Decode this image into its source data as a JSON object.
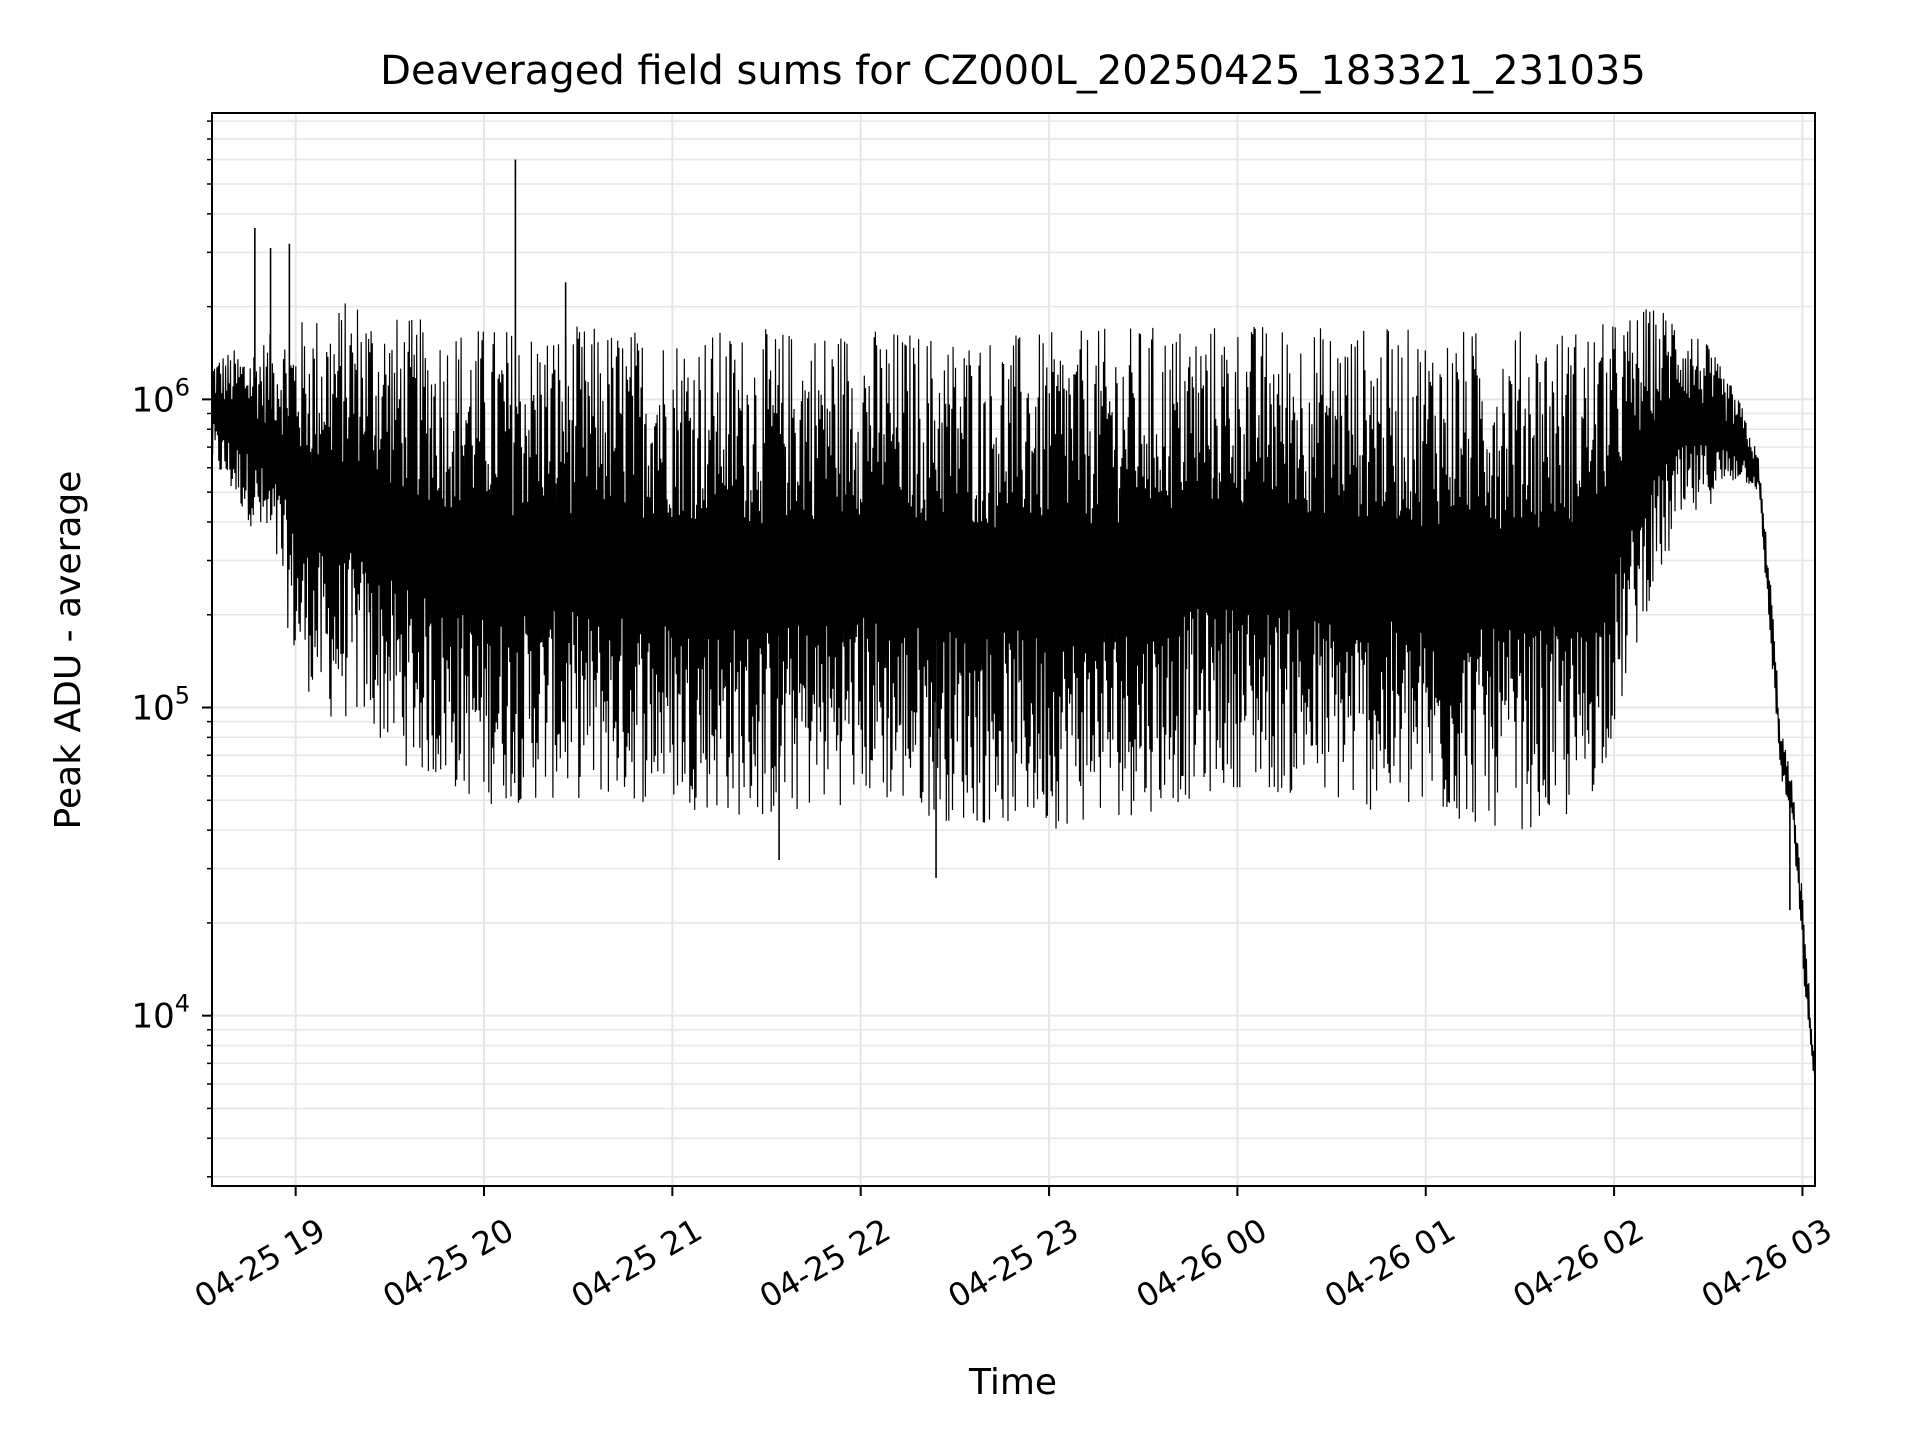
{
  "chart_data": {
    "type": "line",
    "title": "Deaveraged field sums for CZ000L_20250425_183321_231035",
    "xlabel": "Time",
    "ylabel": "Peak ADU - average",
    "x_type": "datetime",
    "xlim": [
      "2025-04-25T18:33:21",
      "2025-04-26T03:04:00"
    ],
    "ylim": [
      2800,
      8500000
    ],
    "yscale": "log",
    "grid": true,
    "x_ticks": [
      {
        "value": "2025-04-25T19:00:00",
        "label": "04-25 19"
      },
      {
        "value": "2025-04-25T20:00:00",
        "label": "04-25 20"
      },
      {
        "value": "2025-04-25T21:00:00",
        "label": "04-25 21"
      },
      {
        "value": "2025-04-25T22:00:00",
        "label": "04-25 22"
      },
      {
        "value": "2025-04-25T23:00:00",
        "label": "04-25 23"
      },
      {
        "value": "2025-04-26T00:00:00",
        "label": "04-26 00"
      },
      {
        "value": "2025-04-26T01:00:00",
        "label": "04-26 01"
      },
      {
        "value": "2025-04-26T02:00:00",
        "label": "04-26 02"
      },
      {
        "value": "2025-04-26T03:00:00",
        "label": "04-26 03"
      }
    ],
    "y_ticks": [
      {
        "value": 10000,
        "base": "10",
        "exp": "4"
      },
      {
        "value": 100000,
        "base": "10",
        "exp": "5"
      },
      {
        "value": 1000000,
        "base": "10",
        "exp": "6"
      }
    ],
    "series": [
      {
        "color": "#000000",
        "envelope": [
          {
            "x": "2025-04-25T18:33:21",
            "low": 600000,
            "high": 1400000
          },
          {
            "x": "2025-04-25T18:45:00",
            "low": 400000,
            "high": 1500000
          },
          {
            "x": "2025-04-25T18:55:00",
            "low": 250000,
            "high": 1700000
          },
          {
            "x": "2025-04-25T19:00:00",
            "low": 130000,
            "high": 1800000
          },
          {
            "x": "2025-04-25T19:10:00",
            "low": 90000,
            "high": 2000000
          },
          {
            "x": "2025-04-25T19:20:00",
            "low": 90000,
            "high": 2200000
          },
          {
            "x": "2025-04-25T19:30:00",
            "low": 70000,
            "high": 1900000
          },
          {
            "x": "2025-04-25T19:45:00",
            "low": 55000,
            "high": 1800000
          },
          {
            "x": "2025-04-25T20:00:00",
            "low": 48000,
            "high": 1750000
          },
          {
            "x": "2025-04-25T20:30:00",
            "low": 50000,
            "high": 1750000
          },
          {
            "x": "2025-04-25T21:00:00",
            "low": 48000,
            "high": 1700000
          },
          {
            "x": "2025-04-25T21:30:00",
            "low": 42000,
            "high": 1700000
          },
          {
            "x": "2025-04-25T22:00:00",
            "low": 50000,
            "high": 1750000
          },
          {
            "x": "2025-04-25T22:30:00",
            "low": 42000,
            "high": 1650000
          },
          {
            "x": "2025-04-25T23:00:00",
            "low": 40000,
            "high": 1650000
          },
          {
            "x": "2025-04-25T23:30:00",
            "low": 45000,
            "high": 1750000
          },
          {
            "x": "2025-04-26T00:00:00",
            "low": 55000,
            "high": 1800000
          },
          {
            "x": "2025-04-26T00:30:00",
            "low": 48000,
            "high": 1750000
          },
          {
            "x": "2025-04-26T01:00:00",
            "low": 42000,
            "high": 1700000
          },
          {
            "x": "2025-04-26T01:30:00",
            "low": 40000,
            "high": 1700000
          },
          {
            "x": "2025-04-26T01:50:00",
            "low": 42000,
            "high": 1750000
          },
          {
            "x": "2025-04-26T02:00:00",
            "low": 80000,
            "high": 1800000
          },
          {
            "x": "2025-04-26T02:10:00",
            "low": 200000,
            "high": 2000000
          },
          {
            "x": "2025-04-26T02:20:00",
            "low": 350000,
            "high": 2000000
          },
          {
            "x": "2025-04-26T02:30:00",
            "low": 450000,
            "high": 1500000
          },
          {
            "x": "2025-04-26T02:40:00",
            "low": 550000,
            "high": 1000000
          },
          {
            "x": "2025-04-26T02:46:00",
            "low": 500000,
            "high": 650000
          },
          {
            "x": "2025-04-26T02:50:00",
            "low": 150000,
            "high": 250000
          },
          {
            "x": "2025-04-26T02:53:00",
            "low": 60000,
            "high": 90000
          },
          {
            "x": "2025-04-26T02:57:00",
            "low": 40000,
            "high": 55000
          },
          {
            "x": "2025-04-26T03:00:00",
            "low": 15000,
            "high": 25000
          },
          {
            "x": "2025-04-26T03:02:00",
            "low": 8000,
            "high": 13000
          },
          {
            "x": "2025-04-26T03:04:00",
            "low": 6000,
            "high": 7000
          }
        ],
        "spikes": [
          {
            "x": "2025-04-25T18:47:00",
            "y": 3600000
          },
          {
            "x": "2025-04-25T18:52:00",
            "y": 3100000
          },
          {
            "x": "2025-04-25T18:58:00",
            "y": 3200000
          },
          {
            "x": "2025-04-25T20:10:00",
            "y": 6000000
          },
          {
            "x": "2025-04-25T20:26:00",
            "y": 2400000
          },
          {
            "x": "2025-04-25T21:34:00",
            "y": 32000
          },
          {
            "x": "2025-04-25T22:24:00",
            "y": 28000
          },
          {
            "x": "2025-04-26T02:56:00",
            "y": 22000
          }
        ]
      }
    ]
  }
}
